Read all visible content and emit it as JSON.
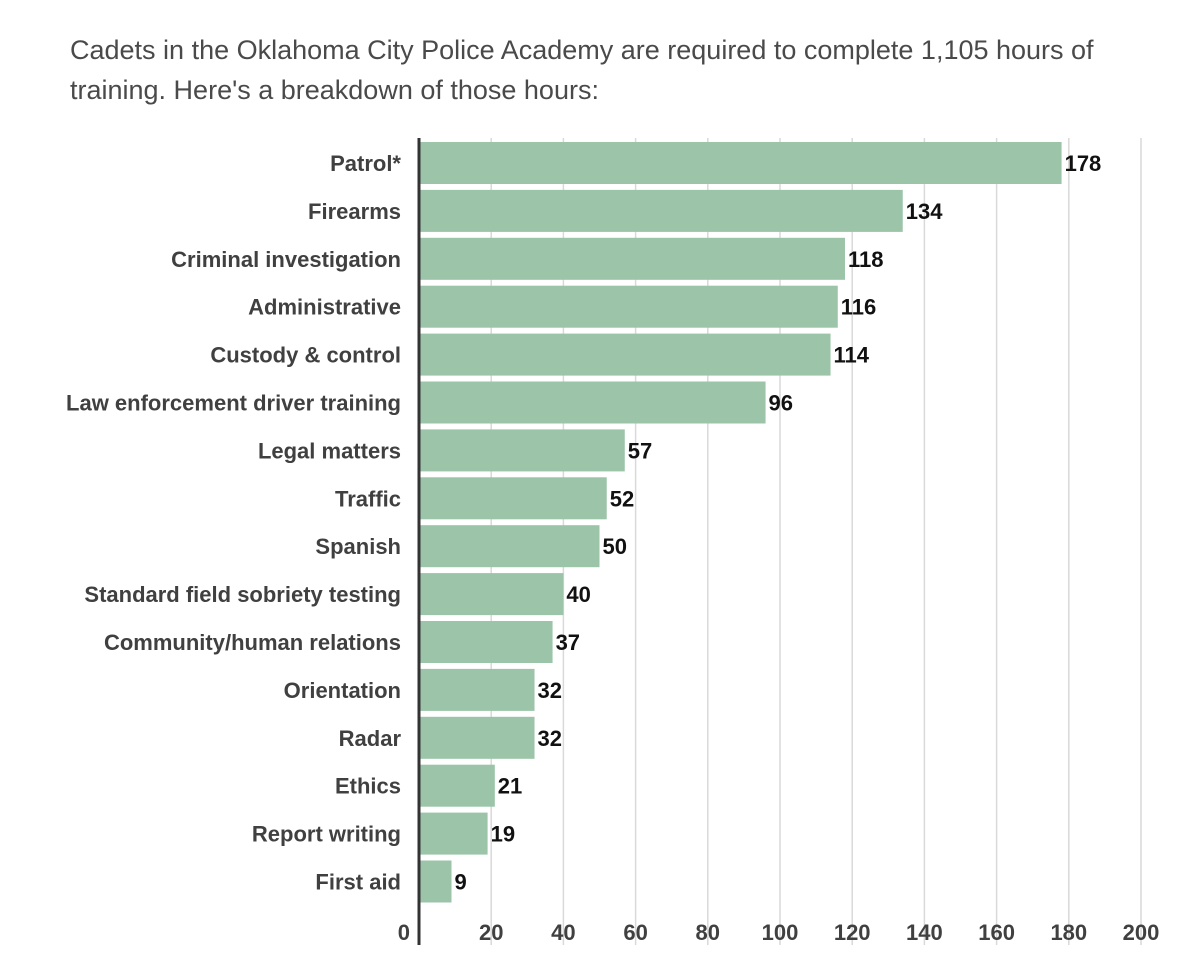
{
  "title": "Cadets in the Oklahoma City Police Academy are required to complete 1,105 hours of training. Here's a breakdown of those hours:",
  "colors": {
    "bar": "#9bc4a8",
    "grid": "#d9d9d9",
    "axis": "#333333"
  },
  "chart_data": {
    "type": "bar",
    "orientation": "horizontal",
    "categories": [
      "Patrol*",
      "Firearms",
      "Criminal investigation",
      "Administrative",
      "Custody & control",
      "Law enforcement driver training",
      "Legal matters",
      "Traffic",
      "Spanish",
      "Standard field sobriety testing",
      "Community/human relations",
      "Orientation",
      "Radar",
      "Ethics",
      "Report writing",
      "First aid"
    ],
    "values": [
      178,
      134,
      118,
      116,
      114,
      96,
      57,
      52,
      50,
      40,
      37,
      32,
      32,
      21,
      19,
      9
    ],
    "xlim": [
      0,
      200
    ],
    "xticks": [
      0,
      20,
      40,
      60,
      80,
      100,
      120,
      140,
      160,
      180,
      200
    ],
    "grid": true,
    "data_labels": true
  }
}
